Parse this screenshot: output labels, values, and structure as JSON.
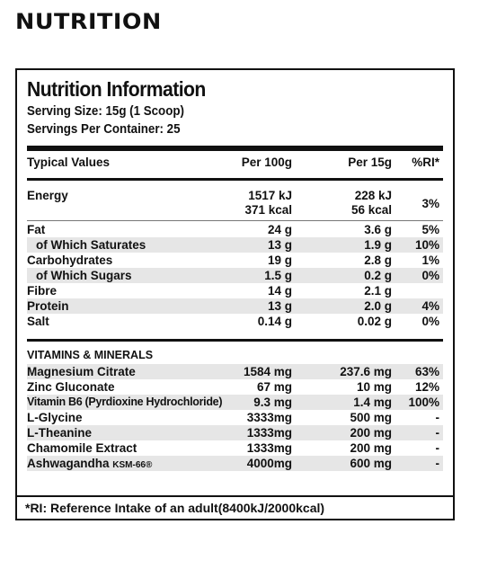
{
  "section_title": "NUTRITION",
  "panel": {
    "title": "Nutrition Information",
    "serving_size": "Serving Size: 15g (1 Scoop)",
    "servings_per_container": "Servings Per Container: 25",
    "headers": {
      "label": "Typical Values",
      "per100": "Per 100g",
      "per15": "Per 15g",
      "ri": "%RI*"
    },
    "energy": {
      "label": "Energy",
      "per100_kj": "1517 kJ",
      "per100_kcal": "371 kcal",
      "per15_kj": "228 kJ",
      "per15_kcal": "56 kcal",
      "ri": "3%"
    },
    "nutrients": [
      {
        "label": "Fat",
        "per100": "24 g",
        "per15": "3.6 g",
        "ri": "5%",
        "indent": false
      },
      {
        "label": "of Which Saturates",
        "per100": "13 g",
        "per15": "1.9 g",
        "ri": "10%",
        "indent": true
      },
      {
        "label": "Carbohydrates",
        "per100": "19 g",
        "per15": "2.8 g",
        "ri": "1%",
        "indent": false
      },
      {
        "label": "of Which Sugars",
        "per100": "1.5 g",
        "per15": "0.2 g",
        "ri": "0%",
        "indent": true
      },
      {
        "label": "Fibre",
        "per100": "14 g",
        "per15": "2.1 g",
        "ri": "",
        "indent": false
      },
      {
        "label": "Protein",
        "per100": "13 g",
        "per15": "2.0 g",
        "ri": "4%",
        "indent": false
      },
      {
        "label": "Salt",
        "per100": "0.14 g",
        "per15": "0.02 g",
        "ri": "0%",
        "indent": false
      }
    ],
    "vitamins_heading": "VITAMINS & MINERALS",
    "vitamins": [
      {
        "label": "Magnesium Citrate",
        "per100": "1584 mg",
        "per15": "237.6 mg",
        "ri": "63%"
      },
      {
        "label": "Zinc Gluconate",
        "per100": "67 mg",
        "per15": "10 mg",
        "ri": "12%"
      },
      {
        "label": "Vitamin B6 (Pyrdioxine Hydrochloride)",
        "per100": "9.3 mg",
        "per15": "1.4 mg",
        "ri": "100%"
      },
      {
        "label": "L-Glycine",
        "per100": "3333mg",
        "per15": "500 mg",
        "ri": "-"
      },
      {
        "label": "L-Theanine",
        "per100": "1333mg",
        "per15": "200 mg",
        "ri": "-"
      },
      {
        "label": "Chamomile Extract",
        "per100": "1333mg",
        "per15": "200 mg",
        "ri": "-"
      },
      {
        "label": "Ashwagandha",
        "label_mark": "KSM-66®",
        "per100": "4000mg",
        "per15": "600 mg",
        "ri": "-"
      }
    ],
    "footnote": "*RI: Reference Intake of an adult(8400kJ/2000kcal)"
  }
}
